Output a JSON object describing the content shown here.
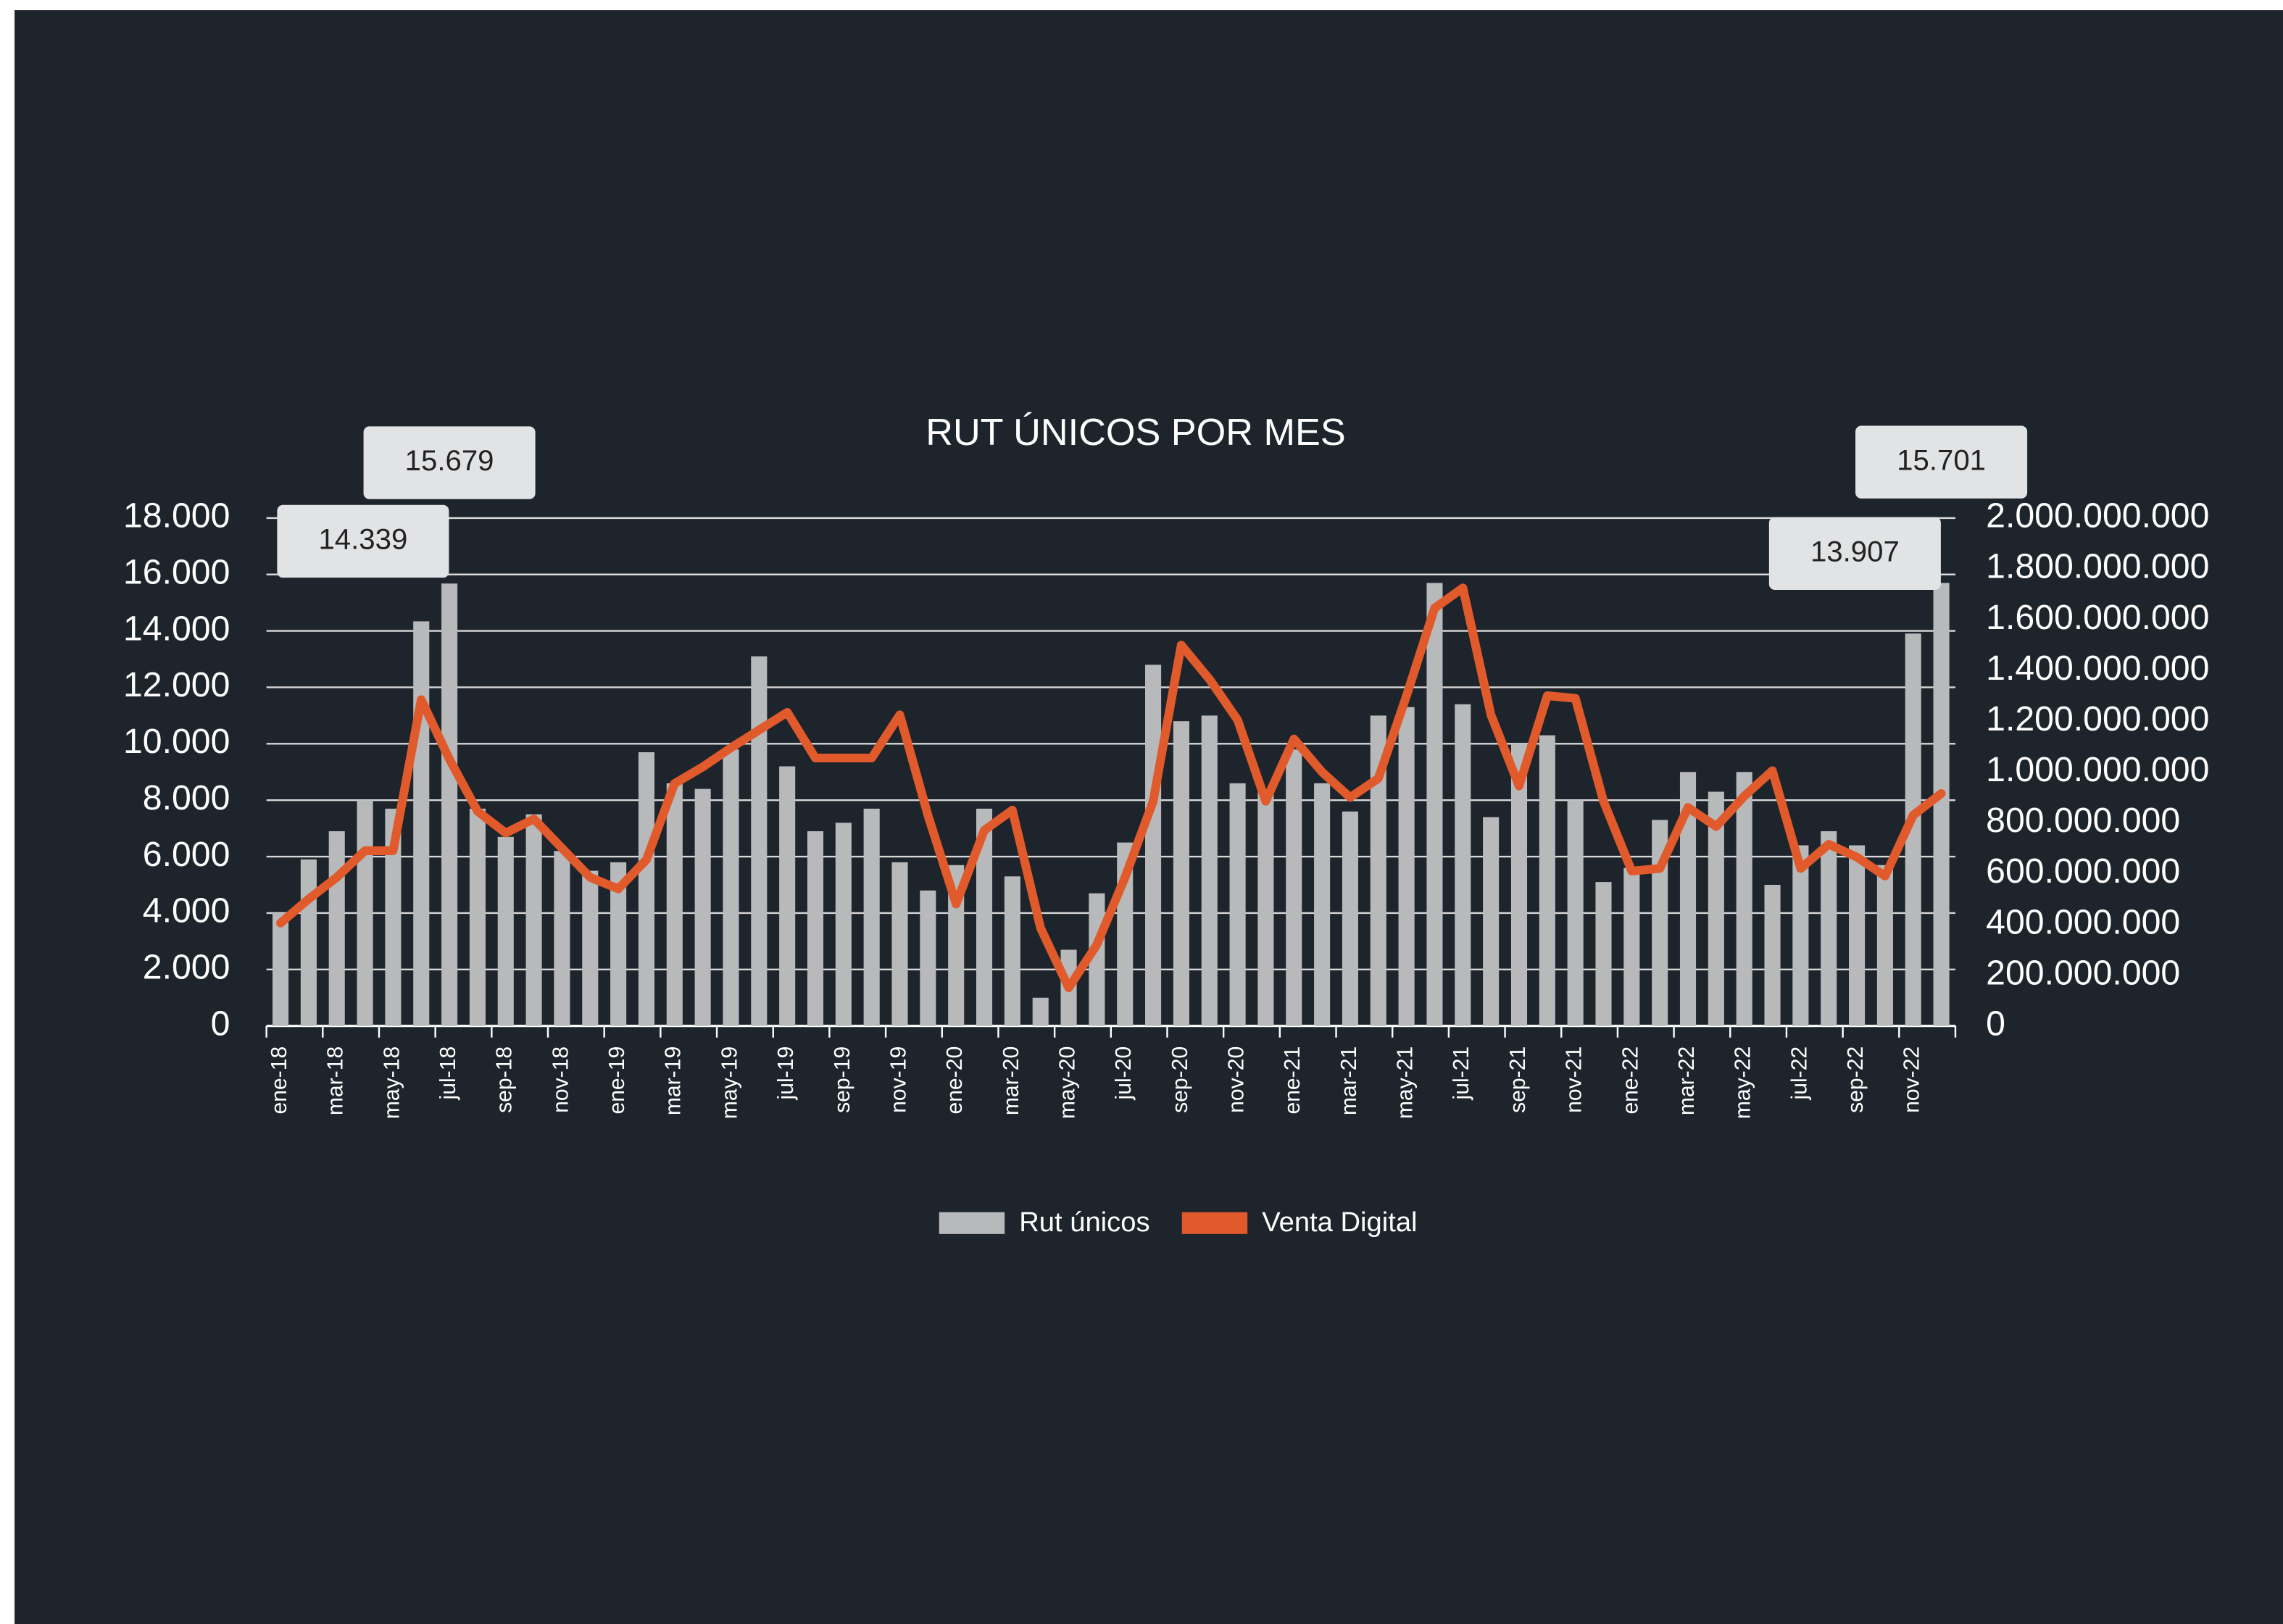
{
  "chart_data": {
    "type": "bar_line",
    "title": "RUT ÚNICOS POR MES",
    "categories": [
      "ene-18",
      null,
      "mar-18",
      null,
      "may-18",
      null,
      "jul-18",
      null,
      "sep-18",
      null,
      "nov-18",
      null,
      "ene-19",
      null,
      "mar-19",
      null,
      "may-19",
      null,
      "jul-19",
      null,
      "sep-19",
      null,
      "nov-19",
      null,
      "ene-20",
      null,
      "mar-20",
      null,
      "may-20",
      null,
      "jul-20",
      null,
      "sep-20",
      null,
      "nov-20",
      null,
      "ene-21",
      null,
      "mar-21",
      null,
      "may-21",
      null,
      "jul-21",
      null,
      "sep-21",
      null,
      "nov-21",
      null,
      "ene-22",
      null,
      "mar-22",
      null,
      "may-22",
      null,
      "jul-22",
      null,
      "sep-22",
      null,
      "nov-22",
      null
    ],
    "series": [
      {
        "name": "Rut únicos",
        "type": "bar",
        "color": "#b8b9bb",
        "values": [
          4000,
          5900,
          6900,
          8000,
          7700,
          14339,
          15679,
          7700,
          6700,
          7500,
          6200,
          5500,
          5800,
          9700,
          8600,
          8400,
          9800,
          13100,
          9200,
          6900,
          7200,
          7700,
          5800,
          4800,
          5700,
          7700,
          5300,
          1000,
          2700,
          4700,
          6500,
          12800,
          10800,
          11000,
          8600,
          8400,
          9800,
          8600,
          7600,
          11000,
          11300,
          15700,
          11400,
          7400,
          10000,
          10300,
          8000,
          5100,
          5600,
          7300,
          9000,
          8300,
          9000,
          5000,
          6400,
          6900,
          6400,
          5700,
          13907,
          15701
        ],
        "value_labels": [
          null,
          null,
          null,
          null,
          null,
          "14.339",
          "15.679",
          null,
          null,
          null,
          null,
          null,
          null,
          null,
          null,
          null,
          null,
          null,
          null,
          null,
          null,
          null,
          null,
          null,
          null,
          null,
          null,
          null,
          null,
          null,
          null,
          null,
          null,
          null,
          null,
          null,
          null,
          null,
          null,
          null,
          null,
          null,
          null,
          null,
          null,
          null,
          null,
          null,
          null,
          null,
          null,
          null,
          null,
          null,
          null,
          null,
          null,
          null,
          "13.907",
          "15.701"
        ]
      },
      {
        "name": "Venta Digital",
        "type": "line",
        "color": "#e05a2b",
        "axis": "y2",
        "values": [
          405000000,
          500000000,
          585000000,
          690000000,
          690000000,
          1285000000,
          1050000000,
          845000000,
          760000000,
          815000000,
          700000000,
          585000000,
          540000000,
          655000000,
          955000000,
          1020000000,
          1095000000,
          1165000000,
          1235000000,
          1055000000,
          1055000000,
          1055000000,
          1225000000,
          830000000,
          480000000,
          770000000,
          850000000,
          385000000,
          150000000,
          320000000,
          585000000,
          885000000,
          1500000000,
          1365000000,
          1205000000,
          885000000,
          1130000000,
          1000000000,
          900000000,
          975000000,
          1300000000,
          1645000000,
          1725000000,
          1225000000,
          945000000,
          1300000000,
          1290000000,
          885000000,
          610000000,
          620000000,
          860000000,
          785000000,
          905000000,
          1005000000,
          620000000,
          715000000,
          665000000,
          590000000,
          830000000,
          915000000
        ]
      }
    ],
    "ylim": [
      0,
      18000
    ],
    "yticks": [
      0,
      {
        "value": 2000,
        "label": "2.000"
      },
      {
        "value": 4000,
        "label": "4.000"
      },
      {
        "value": 6000,
        "label": "6.000"
      },
      {
        "value": 8000,
        "label": "8.000"
      },
      {
        "value": 10000,
        "label": "10.000"
      },
      {
        "value": 12000,
        "label": "12.000"
      },
      {
        "value": 14000,
        "label": "14.000"
      },
      {
        "value": 16000,
        "label": "16.000"
      },
      {
        "value": 18000,
        "label": "18.000"
      }
    ],
    "y2lim": [
      0,
      2000000000
    ],
    "y2ticks": [
      0,
      {
        "value": 200000000,
        "label": "200.000.000"
      },
      {
        "value": 400000000,
        "label": "400.000.000"
      },
      {
        "value": 600000000,
        "label": "600.000.000"
      },
      {
        "value": 800000000,
        "label": "800.000.000"
      },
      {
        "value": 1000000000,
        "label": "1.000.000.000"
      },
      {
        "value": 1200000000,
        "label": "1.200.000.000"
      },
      {
        "value": 1400000000,
        "label": "1.400.000.000"
      },
      {
        "value": 1600000000,
        "label": "1.600.000.000"
      },
      {
        "value": 1800000000,
        "label": "1.800.000.000"
      },
      {
        "value": 2000000000,
        "label": "2.000.000.000"
      }
    ],
    "grid": true,
    "legend": "bottom"
  }
}
